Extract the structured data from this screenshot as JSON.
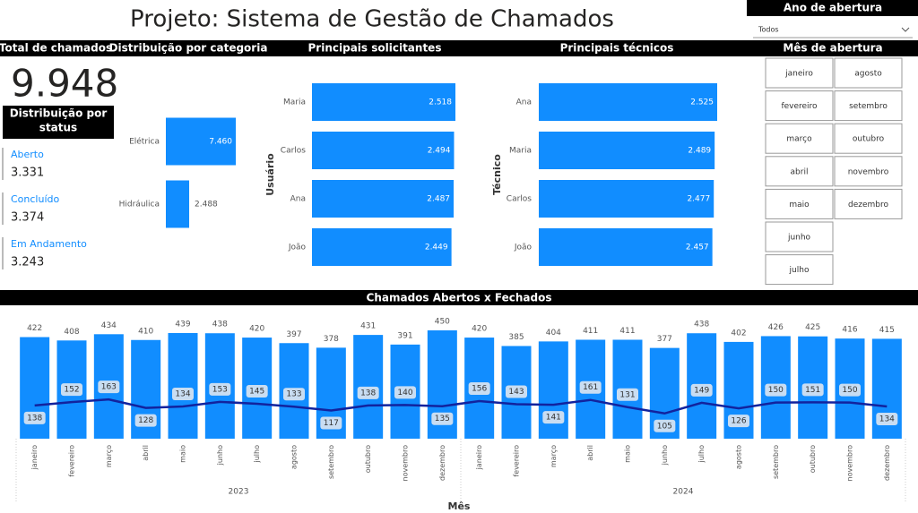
{
  "title": "Projeto: Sistema de Gestão de Chamados",
  "total": {
    "label": "Total de chamados",
    "value": "9.948"
  },
  "status": {
    "title": [
      "Distribuição por",
      "status"
    ],
    "items": [
      {
        "label": "Aberto",
        "value": "3.331"
      },
      {
        "label": "Concluído",
        "value": "3.374"
      },
      {
        "label": "Em Andamento",
        "value": "3.243"
      }
    ]
  },
  "year_filter": {
    "title": "Ano de abertura",
    "selected": "Todos"
  },
  "month_filter": {
    "title": "Mês de abertura",
    "options": [
      "janeiro",
      "fevereiro",
      "março",
      "abril",
      "maio",
      "junho",
      "julho",
      "agosto",
      "setembro",
      "outubro",
      "novembro",
      "dezembro"
    ]
  },
  "chart_data": [
    {
      "type": "bar",
      "orientation": "horizontal",
      "title": "Distribuição por categoria",
      "categories": [
        "Elétrica",
        "Hidráulica"
      ],
      "values": [
        7460,
        2488
      ],
      "value_labels": [
        "7.460",
        "2.488"
      ],
      "color": "#118dff"
    },
    {
      "type": "bar",
      "orientation": "horizontal",
      "title": "Principais solicitantes",
      "y_label": "Usuário",
      "categories": [
        "Maria",
        "Carlos",
        "Ana",
        "João"
      ],
      "values": [
        2518,
        2494,
        2487,
        2449
      ],
      "value_labels": [
        "2.518",
        "2.494",
        "2.487",
        "2.449"
      ],
      "color": "#118dff"
    },
    {
      "type": "bar",
      "orientation": "horizontal",
      "title": "Principais técnicos",
      "y_label": "Técnico",
      "categories": [
        "Ana",
        "Maria",
        "Carlos",
        "João"
      ],
      "values": [
        2525,
        2489,
        2477,
        2457
      ],
      "value_labels": [
        "2.525",
        "2.489",
        "2.477",
        "2.457"
      ],
      "color": "#118dff"
    },
    {
      "type": "combo",
      "title": "Chamados Abertos x Fechados",
      "x_label": "Mês",
      "categories": [
        "janeiro",
        "fevereiro",
        "março",
        "abril",
        "maio",
        "junho",
        "julho",
        "agosto",
        "setembro",
        "outubro",
        "novembro",
        "dezembro",
        "janeiro",
        "fevereiro",
        "março",
        "abril",
        "maio",
        "junho",
        "julho",
        "agosto",
        "setembro",
        "outubro",
        "novembro",
        "dezembro"
      ],
      "category_groups": [
        "2023",
        "2024"
      ],
      "series": [
        {
          "type": "bar",
          "color": "#118dff",
          "values": [
            422,
            408,
            434,
            410,
            439,
            438,
            420,
            397,
            378,
            431,
            391,
            450,
            420,
            385,
            404,
            411,
            411,
            377,
            438,
            402,
            426,
            425,
            416,
            415
          ]
        },
        {
          "type": "line",
          "color": "#12239e",
          "values": [
            138,
            152,
            163,
            128,
            134,
            153,
            145,
            133,
            117,
            138,
            140,
            135,
            156,
            143,
            141,
            161,
            131,
            105,
            149,
            126,
            150,
            151,
            150,
            134
          ]
        }
      ]
    }
  ]
}
